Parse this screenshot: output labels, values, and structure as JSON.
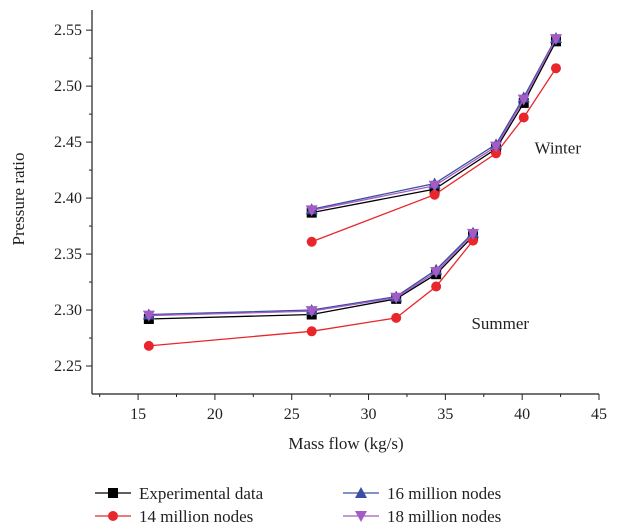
{
  "chart_data": {
    "type": "line",
    "xlabel": "Mass flow (kg/s)",
    "ylabel": "Pressure ratio",
    "xlim": [
      12,
      45
    ],
    "ylim": [
      2.225,
      2.568
    ],
    "x_ticks": [
      15,
      20,
      25,
      30,
      35,
      40,
      45
    ],
    "y_ticks": [
      2.25,
      2.3,
      2.35,
      2.4,
      2.45,
      2.5,
      2.55
    ],
    "grid": false,
    "legend_position": "bottom",
    "annotations": [
      {
        "text": "Winter",
        "x": 40.8,
        "y": 2.44
      },
      {
        "text": "Summer",
        "x": 36.7,
        "y": 2.283
      }
    ],
    "groups": [
      {
        "name": "Winter",
        "x": [
          26.3,
          34.3,
          38.3,
          40.1,
          42.2
        ]
      },
      {
        "name": "Summer",
        "x": [
          15.7,
          26.3,
          31.8,
          34.4,
          36.8
        ]
      }
    ],
    "series": [
      {
        "name": "Experimental data",
        "color": "#000000",
        "marker": "square",
        "values": {
          "Winter": [
            2.387,
            2.408,
            2.444,
            2.485,
            2.54
          ],
          "Summer": [
            2.292,
            2.296,
            2.31,
            2.332,
            2.366
          ]
        }
      },
      {
        "name": "14 million nodes",
        "color": "#e8262b",
        "marker": "circle",
        "values": {
          "Winter": [
            2.361,
            2.403,
            2.44,
            2.472,
            2.516
          ],
          "Summer": [
            2.268,
            2.281,
            2.293,
            2.321,
            2.362
          ]
        }
      },
      {
        "name": "16 million nodes",
        "color": "#3a4fa3",
        "marker": "triangle-up",
        "values": {
          "Winter": [
            2.39,
            2.413,
            2.448,
            2.49,
            2.543
          ],
          "Summer": [
            2.296,
            2.3,
            2.312,
            2.336,
            2.369
          ]
        }
      },
      {
        "name": "18 million nodes",
        "color": "#a45bc4",
        "marker": "triangle-down",
        "values": {
          "Winter": [
            2.389,
            2.411,
            2.446,
            2.488,
            2.542
          ],
          "Summer": [
            2.295,
            2.299,
            2.311,
            2.334,
            2.368
          ]
        }
      }
    ]
  }
}
